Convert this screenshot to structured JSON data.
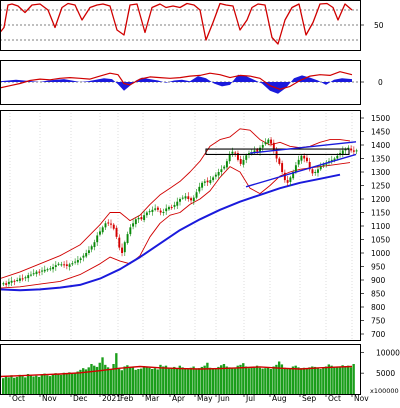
{
  "colors": {
    "background": "#ffffff",
    "frame": "#000000",
    "grid": "#b9b9b9",
    "price_up": "#0a8a0a",
    "price_down": "#d40000",
    "volume": "#1a9e1a",
    "ma_long": "#1a1adc",
    "bollinger": "#d00000",
    "stoch_line": "#d00000",
    "macd_hist": "#1a1adc",
    "macd_line": "#d00000",
    "trend_channel": "#1a1adc",
    "resistance_box": "#000000"
  },
  "chart_data": [
    {
      "panel": "stochastic",
      "type": "line",
      "y_tick_labels": [
        "50"
      ],
      "reference_levels": [
        80,
        50,
        20
      ],
      "ylim": [
        0,
        100
      ],
      "series": [
        {
          "x": [
            0,
            4,
            8,
            12,
            18,
            25,
            32,
            40,
            48,
            55,
            62,
            68,
            75,
            82,
            90,
            97,
            103,
            110,
            117,
            124,
            130,
            137,
            145,
            152,
            160,
            166,
            173,
            180,
            187,
            194,
            200,
            206,
            213,
            220,
            226,
            233,
            240,
            247,
            252,
            258,
            265,
            272,
            278,
            285,
            292,
            299,
            306,
            313,
            320,
            327,
            333,
            338,
            345,
            352
          ],
          "values": [
            35,
            45,
            90,
            92,
            88,
            75,
            90,
            92,
            80,
            45,
            85,
            93,
            90,
            60,
            85,
            90,
            92,
            88,
            40,
            30,
            90,
            92,
            35,
            85,
            92,
            85,
            88,
            85,
            93,
            90,
            80,
            20,
            55,
            93,
            90,
            88,
            40,
            60,
            85,
            92,
            90,
            25,
            12,
            60,
            85,
            92,
            30,
            55,
            92,
            93,
            85,
            60,
            92,
            80
          ]
        }
      ]
    },
    {
      "panel": "macd",
      "type": "bar",
      "y_tick_labels": [
        "0"
      ],
      "ylim": [
        -30,
        30
      ],
      "histogram": {
        "x": [
          0,
          8,
          16,
          24,
          32,
          40,
          48,
          56,
          64,
          72,
          80,
          88,
          96,
          104,
          112,
          118,
          124,
          130,
          136,
          142,
          150,
          158,
          166,
          174,
          182,
          190,
          198,
          206,
          214,
          222,
          230,
          238,
          246,
          254,
          262,
          270,
          278,
          286,
          294,
          302,
          310,
          318,
          326,
          334,
          342,
          352
        ],
        "values": [
          1,
          2,
          3,
          2,
          1,
          0,
          2,
          3,
          4,
          2,
          0,
          1,
          3,
          5,
          4,
          -3,
          -12,
          -5,
          2,
          6,
          4,
          2,
          -1,
          2,
          3,
          1,
          8,
          5,
          -2,
          -6,
          -4,
          10,
          8,
          3,
          -2,
          -12,
          -16,
          -8,
          5,
          9,
          6,
          2,
          -4,
          3,
          5,
          4
        ]
      },
      "signal": {
        "x": [
          0,
          10,
          20,
          30,
          40,
          50,
          60,
          70,
          80,
          90,
          100,
          110,
          118,
          124,
          130,
          140,
          150,
          160,
          170,
          180,
          190,
          200,
          210,
          220,
          230,
          240,
          250,
          260,
          270,
          280,
          290,
          300,
          310,
          320,
          330,
          340,
          352
        ],
        "values": [
          -8,
          -5,
          -2,
          2,
          4,
          3,
          5,
          6,
          5,
          4,
          8,
          12,
          10,
          -2,
          -4,
          4,
          7,
          6,
          5,
          6,
          8,
          9,
          12,
          10,
          6,
          9,
          8,
          5,
          -5,
          -10,
          -6,
          2,
          8,
          10,
          9,
          14,
          10
        ]
      }
    },
    {
      "panel": "price",
      "type": "candlestick",
      "y_tick_labels": [
        "1500",
        "1450",
        "1400",
        "1350",
        "1300",
        "1250",
        "1200",
        "1150",
        "1100",
        "1050",
        "1000",
        "950",
        "900",
        "850",
        "800",
        "750",
        "700"
      ],
      "ylim": [
        700,
        1500
      ],
      "x_tick_labels": [
        "Oct",
        "Nov",
        "Dec",
        "2021",
        "Feb",
        "Mar",
        "Apr",
        "May",
        "Jun",
        "Jul",
        "Aug",
        "Sep",
        "Oct",
        "Nov"
      ],
      "close": [
        888,
        882,
        893,
        897,
        895,
        900,
        906,
        905,
        910,
        918,
        920,
        925,
        931,
        929,
        935,
        938,
        940,
        943,
        948,
        955,
        960,
        958,
        955,
        952,
        958,
        962,
        968,
        974,
        980,
        990,
        1000,
        1010,
        1025,
        1040,
        1065,
        1080,
        1095,
        1110,
        1112,
        1105,
        1090,
        1060,
        1020,
        1000,
        1040,
        1070,
        1095,
        1110,
        1125,
        1130,
        1125,
        1140,
        1150,
        1155,
        1160,
        1165,
        1160,
        1150,
        1152,
        1165,
        1170,
        1168,
        1178,
        1190,
        1200,
        1205,
        1210,
        1200,
        1195,
        1205,
        1225,
        1245,
        1260,
        1265,
        1262,
        1270,
        1280,
        1290,
        1300,
        1310,
        1320,
        1340,
        1365,
        1375,
        1370,
        1345,
        1330,
        1345,
        1362,
        1370,
        1372,
        1380,
        1375,
        1390,
        1400,
        1410,
        1420,
        1405,
        1380,
        1350,
        1330,
        1300,
        1270,
        1260,
        1280,
        1300,
        1325,
        1345,
        1360,
        1350,
        1340,
        1310,
        1295,
        1300,
        1310,
        1320,
        1330,
        1335,
        1340,
        1345,
        1350,
        1360,
        1370,
        1380,
        1385,
        1390,
        1380,
        1375,
        1380
      ]
    },
    {
      "panel": "volume",
      "type": "bar",
      "y_tick_labels": [
        "10000",
        "5000",
        "x100000"
      ],
      "ylim": [
        0,
        12000
      ],
      "average": {
        "x": [
          0,
          20,
          40,
          60,
          80,
          100,
          120,
          140,
          160,
          180,
          200,
          220,
          240,
          260,
          280,
          300,
          320,
          340,
          352
        ],
        "values": [
          4200,
          4400,
          4600,
          4800,
          5100,
          5600,
          6200,
          6600,
          6300,
          6100,
          6000,
          6100,
          6300,
          6500,
          6200,
          6000,
          6300,
          6500,
          6600
        ]
      },
      "values": [
        3800,
        4200,
        4000,
        4500,
        3900,
        4100,
        4600,
        4300,
        4000,
        4800,
        4500,
        4200,
        4400,
        4100,
        4700,
        4900,
        4500,
        4300,
        4800,
        5000,
        4700,
        4600,
        5100,
        4800,
        5200,
        4900,
        5100,
        5400,
        5800,
        6200,
        5900,
        6400,
        7200,
        6800,
        6500,
        7500,
        8800,
        7000,
        6400,
        6000,
        7200,
        9800,
        6100,
        5700,
        6600,
        6900,
        6300,
        6600,
        5800,
        6000,
        6100,
        6700,
        6400,
        6300,
        6000,
        6200,
        5900,
        7000,
        6600,
        6800,
        6100,
        6300,
        6500,
        6200,
        6800,
        6400,
        6000,
        5900,
        6300,
        6600,
        6100,
        6200,
        6500,
        6800,
        7500,
        6300,
        6100,
        6200,
        6500,
        6900,
        7200,
        6600,
        6400,
        6200,
        6100,
        6800,
        7000,
        7400,
        6600,
        6200,
        6500,
        6600,
        6800,
        6300,
        6100,
        6200,
        6400,
        6000,
        6600,
        7000,
        7800,
        7100,
        6300,
        6100,
        6200,
        6600,
        6800,
        6400,
        6200,
        6300,
        6100,
        6400,
        6600,
        6500,
        6200,
        6000,
        6300,
        6600,
        7100,
        6800,
        6500,
        6400,
        6600,
        6900,
        6600,
        6800,
        6400,
        7200
      ]
    }
  ],
  "overlays": {
    "ma_long": {
      "x": [
        0,
        20,
        40,
        60,
        80,
        100,
        120,
        140,
        160,
        180,
        200,
        220,
        240,
        260,
        280,
        300,
        320,
        340
      ],
      "values": [
        865,
        862,
        865,
        872,
        882,
        905,
        940,
        985,
        1035,
        1085,
        1125,
        1160,
        1190,
        1215,
        1240,
        1260,
        1275,
        1290
      ]
    },
    "bollinger_upper": {
      "x": [
        0,
        20,
        40,
        60,
        80,
        100,
        110,
        120,
        130,
        140,
        150,
        160,
        170,
        180,
        190,
        200,
        210,
        220,
        230,
        240,
        250,
        260,
        270,
        280,
        290,
        300,
        310,
        320,
        330,
        340,
        350
      ],
      "values": [
        905,
        930,
        960,
        990,
        1030,
        1105,
        1150,
        1150,
        1120,
        1140,
        1180,
        1215,
        1240,
        1265,
        1300,
        1340,
        1395,
        1420,
        1430,
        1460,
        1455,
        1420,
        1400,
        1410,
        1395,
        1390,
        1395,
        1410,
        1420,
        1420,
        1415
      ]
    },
    "bollinger_lower": {
      "x": [
        0,
        20,
        40,
        60,
        80,
        100,
        110,
        120,
        130,
        140,
        150,
        160,
        170,
        180,
        190,
        200,
        210,
        220,
        230,
        240,
        250,
        260,
        270,
        280,
        290,
        300,
        310,
        320,
        330,
        340,
        350
      ],
      "values": [
        870,
        875,
        885,
        895,
        920,
        960,
        985,
        970,
        960,
        990,
        1060,
        1110,
        1140,
        1150,
        1180,
        1200,
        1230,
        1280,
        1320,
        1300,
        1240,
        1220,
        1250,
        1285,
        1300,
        1310,
        1315,
        1320,
        1325,
        1330,
        1335
      ]
    },
    "resistance_box": {
      "x_range": [
        206,
        349
      ],
      "y_range": [
        1365,
        1385
      ]
    },
    "channel_upper": {
      "x": [
        250,
        356
      ],
      "values": [
        1370,
        1412
      ]
    },
    "channel_lower": {
      "x": [
        246,
        356
      ],
      "values": [
        1245,
        1365
      ]
    }
  }
}
